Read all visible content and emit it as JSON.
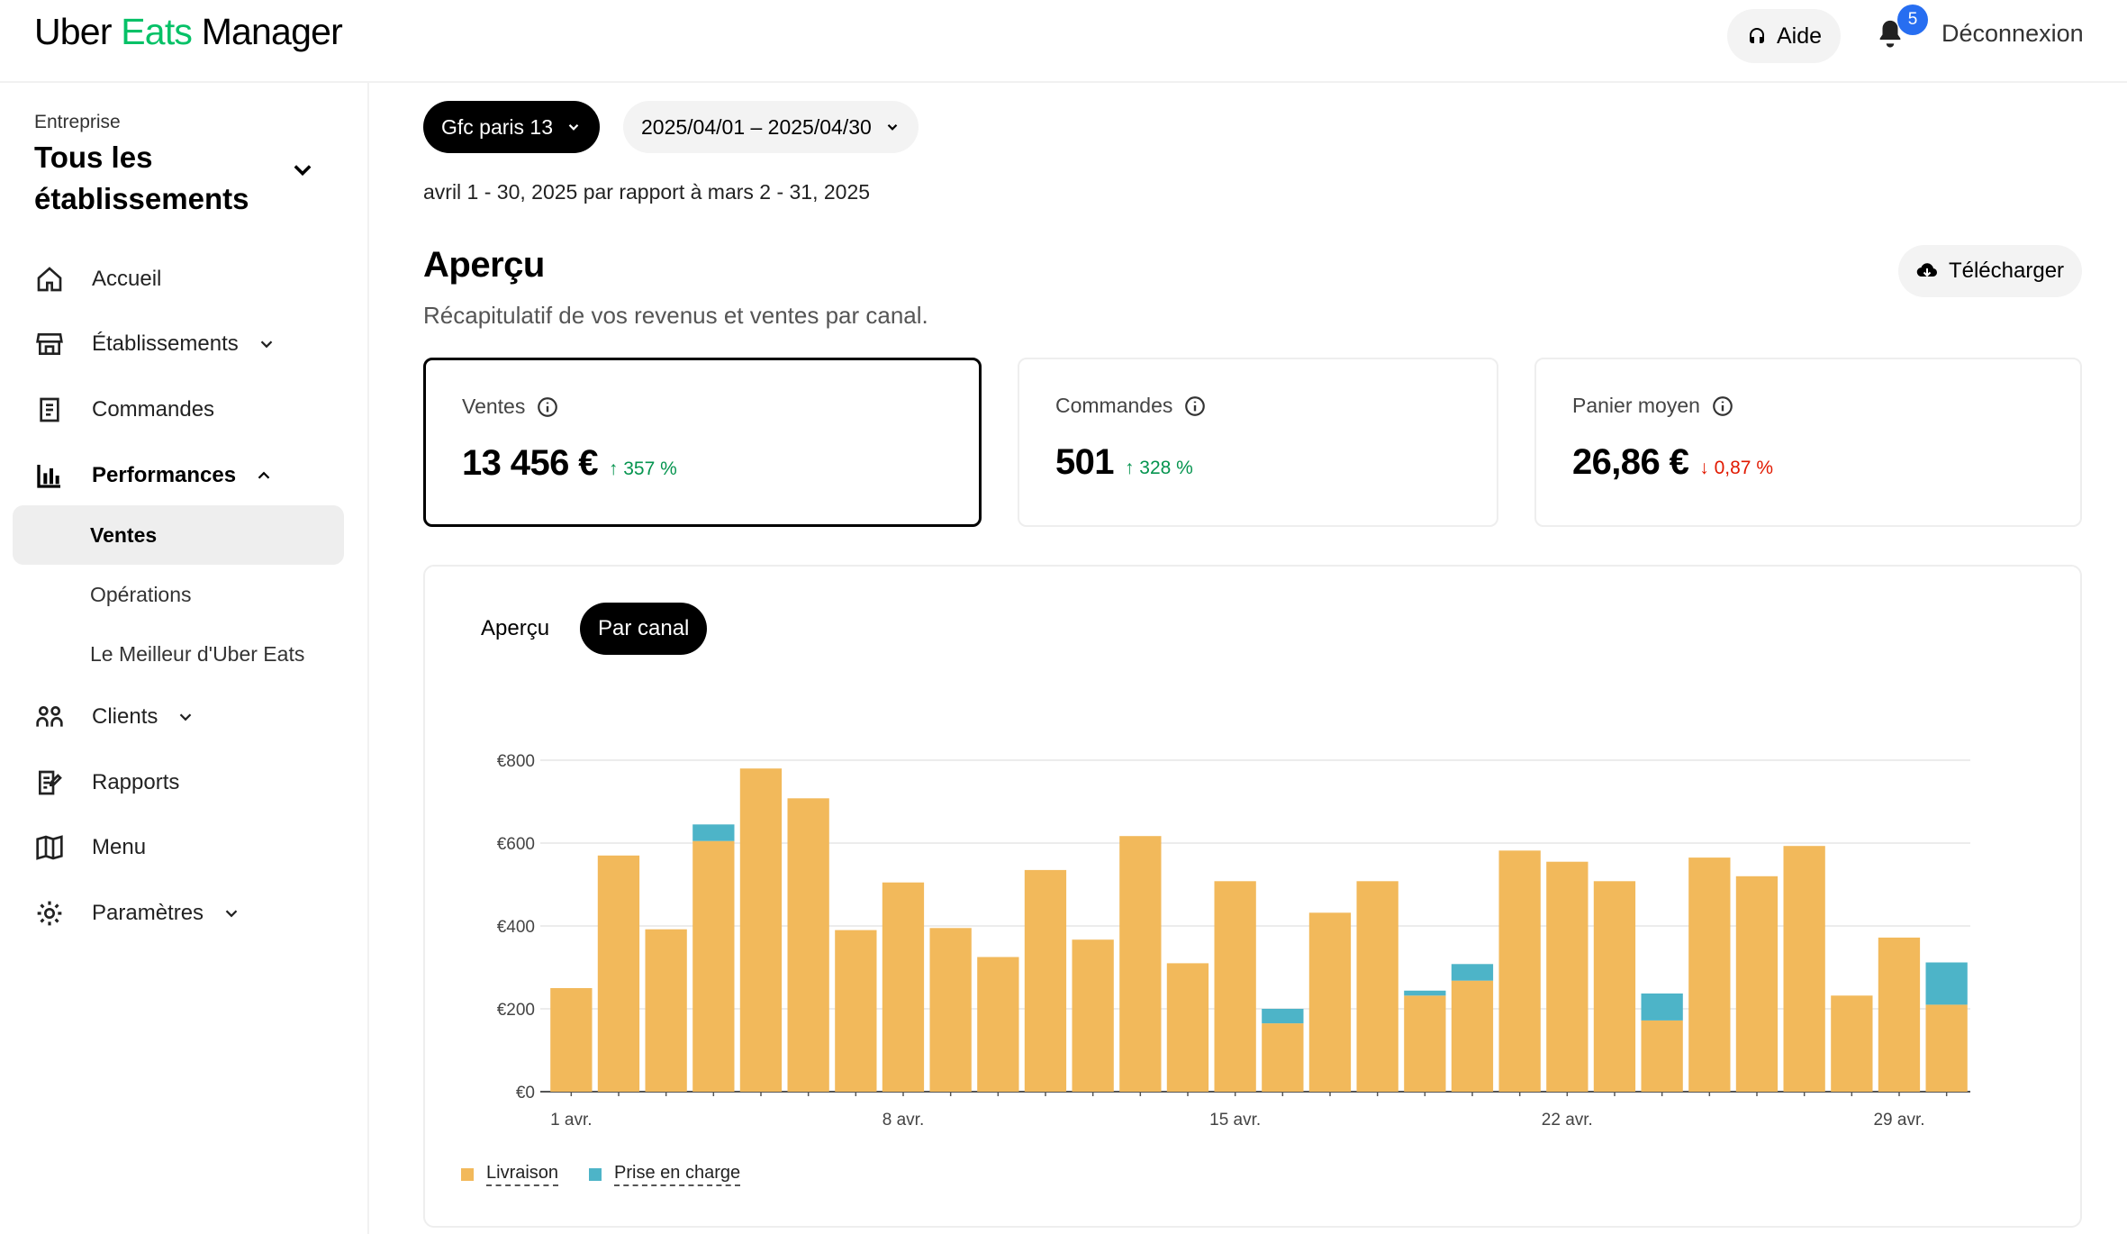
{
  "header": {
    "logo": {
      "uber": "Uber",
      "eats": "Eats",
      "manager": "Manager"
    },
    "help_label": "Aide",
    "notification_count": "5",
    "logout_label": "Déconnexion"
  },
  "sidebar": {
    "enterprise_label": "Entreprise",
    "enterprise_value": "Tous les établissements",
    "items": [
      {
        "label": "Accueil",
        "icon": "home-icon"
      },
      {
        "label": "Établissements",
        "icon": "store-icon"
      },
      {
        "label": "Commandes",
        "icon": "receipt-icon"
      },
      {
        "label": "Performances",
        "icon": "chart-icon"
      },
      {
        "label": "Clients",
        "icon": "people-icon"
      },
      {
        "label": "Rapports",
        "icon": "report-icon"
      },
      {
        "label": "Menu",
        "icon": "book-icon"
      },
      {
        "label": "Paramètres",
        "icon": "gear-icon"
      }
    ],
    "sub_items": [
      {
        "label": "Ventes",
        "selected": true
      },
      {
        "label": "Opérations"
      },
      {
        "label": "Le Meilleur d'Uber Eats"
      }
    ]
  },
  "filters": {
    "store": "Gfc paris 13",
    "date_range": "2025/04/01 – 2025/04/30"
  },
  "comparison_text": "avril 1 - 30, 2025 par rapport à mars 2 - 31, 2025",
  "overview": {
    "title": "Aperçu",
    "subtitle": "Récapitulatif de vos revenus et ventes par canal.",
    "download_label": "Télécharger"
  },
  "cards": [
    {
      "label": "Ventes",
      "value": "13 456 €",
      "change": "357 %",
      "direction": "up"
    },
    {
      "label": "Commandes",
      "value": "501",
      "change": "328 %",
      "direction": "up"
    },
    {
      "label": "Panier moyen",
      "value": "26,86 €",
      "change": "0,87 %",
      "direction": "down"
    }
  ],
  "chart_tabs": [
    {
      "label": "Aperçu",
      "active": false
    },
    {
      "label": "Par canal",
      "active": true
    }
  ],
  "colors": {
    "livraison": "#f2b95b",
    "prise_en_charge": "#4db4c8",
    "accent_green": "#06c167",
    "up": "#05944f",
    "down": "#e11900"
  },
  "chart_data": {
    "type": "bar",
    "stacked": true,
    "categories": [
      "1",
      "2",
      "3",
      "4",
      "5",
      "6",
      "7",
      "8",
      "9",
      "10",
      "11",
      "12",
      "13",
      "14",
      "15",
      "16",
      "17",
      "18",
      "19",
      "20",
      "21",
      "22",
      "23",
      "24",
      "25",
      "26",
      "27",
      "28",
      "29",
      "30"
    ],
    "series": [
      {
        "name": "Livraison",
        "values": [
          250,
          570,
          392,
          605,
          780,
          708,
          390,
          505,
          395,
          325,
          535,
          367,
          617,
          310,
          508,
          165,
          432,
          508,
          232,
          268,
          582,
          555,
          508,
          172,
          565,
          520,
          593,
          232,
          372,
          210
        ]
      },
      {
        "name": "Prise en charge",
        "values": [
          0,
          0,
          0,
          40,
          0,
          0,
          0,
          0,
          0,
          0,
          0,
          0,
          0,
          0,
          0,
          35,
          0,
          0,
          12,
          40,
          0,
          0,
          0,
          65,
          0,
          0,
          0,
          0,
          0,
          102
        ]
      }
    ],
    "y_ticks": [
      "€0",
      "€200",
      "€400",
      "€600",
      "€800"
    ],
    "ylim": [
      0,
      800
    ],
    "x_tick_labels": [
      {
        "index": 0,
        "label": "1 avr."
      },
      {
        "index": 7,
        "label": "8 avr."
      },
      {
        "index": 14,
        "label": "15 avr."
      },
      {
        "index": 21,
        "label": "22 avr."
      },
      {
        "index": 28,
        "label": "29 avr."
      }
    ],
    "grid": true,
    "legend_position": "bottom-left"
  }
}
